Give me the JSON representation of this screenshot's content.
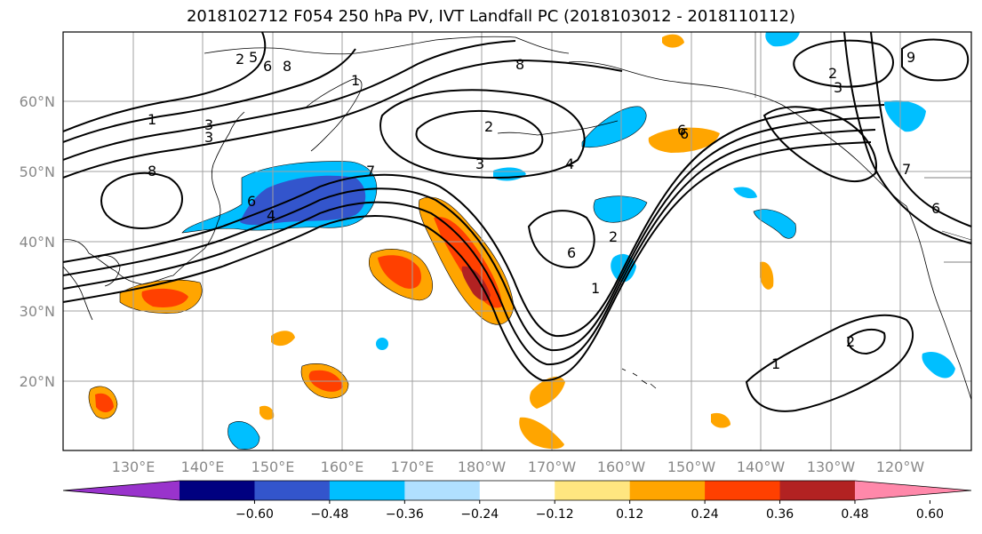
{
  "title": "2018102712 F054 250 hPa PV, IVT Landfall PC (2018103012 - 2018110112)",
  "lat_labels": [
    "60°N",
    "50°N",
    "40°N",
    "30°N",
    "20°N"
  ],
  "lon_labels": [
    "130°E",
    "140°E",
    "150°E",
    "160°E",
    "170°E",
    "180°W",
    "170°W",
    "160°W",
    "150°W",
    "140°W",
    "130°W",
    "120°W"
  ],
  "colorbar": {
    "ticks": [
      "−0.60",
      "−0.48",
      "−0.36",
      "−0.24",
      "−0.12",
      "0.12",
      "0.24",
      "0.36",
      "0.48",
      "0.60"
    ],
    "colors": [
      "#9933cc",
      "#000080",
      "#3355cc",
      "#00bfff",
      "#b0e0ff",
      "#ffffff",
      "#ffe680",
      "#ffa500",
      "#ff4000",
      "#b22222",
      "#ff88aa"
    ]
  },
  "contour_labels": [
    "1",
    "2",
    "3",
    "4",
    "5",
    "6",
    "8",
    "1",
    "2",
    "3",
    "6",
    "7",
    "2",
    "3",
    "4",
    "6",
    "1",
    "2",
    "1",
    "6",
    "2",
    "3",
    "6",
    "8",
    "9",
    "7",
    "6",
    "8"
  ]
}
